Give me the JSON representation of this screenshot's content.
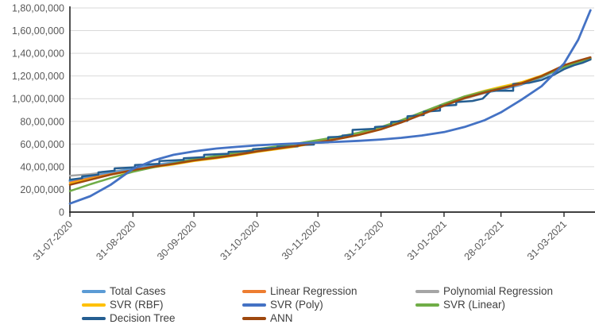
{
  "chart_data": {
    "type": "line",
    "title": "",
    "xlabel": "",
    "ylabel": "",
    "grid": "horizontal",
    "legend_position": "bottom",
    "legend_columns": 3,
    "y_axis": {
      "unit_note": "values in Indian digit grouping (lakhs/crores)",
      "ylim": [
        0,
        18000000
      ],
      "tick_values_lakh": [
        0,
        20,
        40,
        60,
        80,
        100,
        120,
        140,
        160,
        180
      ],
      "tick_labels": [
        "0",
        "20,00,000",
        "40,00,000",
        "60,00,000",
        "80,00,000",
        "1,00,00,000",
        "1,20,00,000",
        "1,40,00,000",
        "1,60,00,000",
        "1,80,00,000"
      ]
    },
    "x_axis": {
      "tick_labels": [
        "31-07-2020",
        "31-08-2020",
        "30-09-2020",
        "31-10-2020",
        "30-11-2020",
        "31-12-2020",
        "31-01-2021",
        "28-02-2021",
        "31-03-2021"
      ],
      "tick_days": [
        0,
        31,
        61,
        92,
        122,
        153,
        184,
        212,
        243
      ],
      "end_day": 256
    },
    "sample_days": [
      0,
      10,
      20,
      31,
      41,
      51,
      61,
      72,
      82,
      92,
      102,
      112,
      122,
      132,
      142,
      153,
      163,
      173,
      184,
      194,
      204,
      212,
      222,
      232,
      243,
      250,
      256
    ],
    "series": [
      {
        "name": "Polynomial Regression",
        "color": "#A5A5A5",
        "width": 2.5,
        "values_lakh": [
          32,
          33.5,
          35.5,
          38.5,
          41.5,
          44,
          46.5,
          49,
          51.5,
          54,
          56.5,
          58.5,
          62,
          65,
          68.5,
          73.5,
          79,
          86,
          93.5,
          100,
          105,
          108.5,
          113,
          119.5,
          128.5,
          132.5,
          135
        ]
      },
      {
        "name": "Total Cases",
        "color": "#5B9BD5",
        "width": 3.2,
        "values_lakh": [
          27.5,
          31,
          34.5,
          38,
          41,
          43.5,
          46.5,
          49,
          51.5,
          54.5,
          56.5,
          59,
          62.5,
          65.5,
          69,
          74,
          80,
          87,
          94.5,
          101,
          105.5,
          108,
          112.5,
          119,
          128,
          132,
          135.5
        ]
      },
      {
        "name": "Linear Regression",
        "color": "#ED7D31",
        "width": 2.5,
        "values_lakh": [
          26,
          30,
          33.5,
          37,
          40,
          42.5,
          46,
          48.5,
          51,
          54,
          56.5,
          58.5,
          62,
          65,
          68.5,
          73.5,
          79.5,
          86.5,
          94,
          100.5,
          105.5,
          109,
          113,
          119.5,
          129,
          133,
          135.5
        ]
      },
      {
        "name": "SVR (RBF)",
        "color": "#FFC000",
        "width": 2.5,
        "values_lakh": [
          25,
          29,
          33,
          36.5,
          39.5,
          42,
          45,
          47.5,
          50,
          53,
          55.5,
          58,
          61.5,
          64.5,
          68,
          73,
          79.5,
          86.5,
          95,
          102,
          107,
          110.5,
          114.5,
          120.5,
          129,
          132.5,
          134.5
        ]
      },
      {
        "name": "SVR (Linear)",
        "color": "#70AD47",
        "width": 2.5,
        "values_lakh": [
          18.5,
          24.5,
          30,
          35.5,
          39.5,
          43,
          46.5,
          49.5,
          52.5,
          55.5,
          58,
          60.5,
          63.5,
          66.5,
          70,
          75,
          81,
          88,
          95.5,
          102,
          106.5,
          109.5,
          113.5,
          119.5,
          128,
          132,
          135
        ]
      },
      {
        "name": "Decision Tree",
        "color": "#255E91",
        "width": 2.5,
        "points_day_lakh": [
          [
            0,
            28.5
          ],
          [
            6,
            30
          ],
          [
            6,
            31.5
          ],
          [
            14,
            33
          ],
          [
            14,
            35
          ],
          [
            22,
            36.5
          ],
          [
            22,
            38.5
          ],
          [
            32,
            39.5
          ],
          [
            32,
            41.5
          ],
          [
            44,
            42.5
          ],
          [
            44,
            45
          ],
          [
            56,
            46
          ],
          [
            56,
            47.5
          ],
          [
            66,
            48.5
          ],
          [
            66,
            50.5
          ],
          [
            78,
            51.5
          ],
          [
            78,
            53
          ],
          [
            90,
            54
          ],
          [
            90,
            55.5
          ],
          [
            102,
            56.5
          ],
          [
            102,
            57.5
          ],
          [
            112,
            58
          ],
          [
            112,
            59
          ],
          [
            120,
            59.5
          ],
          [
            120,
            61
          ],
          [
            127,
            61.5
          ],
          [
            127,
            66
          ],
          [
            134,
            66.5
          ],
          [
            134,
            67.5
          ],
          [
            139,
            68
          ],
          [
            139,
            72.5
          ],
          [
            150,
            73.5
          ],
          [
            150,
            75
          ],
          [
            158,
            76
          ],
          [
            158,
            79.5
          ],
          [
            166,
            80.5
          ],
          [
            166,
            84.5
          ],
          [
            174,
            85.5
          ],
          [
            174,
            88.5
          ],
          [
            182,
            89.5
          ],
          [
            182,
            93.5
          ],
          [
            190,
            94.5
          ],
          [
            190,
            97
          ],
          [
            198,
            98
          ],
          [
            203,
            100
          ],
          [
            207,
            107
          ],
          [
            218,
            107
          ],
          [
            218,
            113
          ],
          [
            226,
            114
          ],
          [
            232,
            116.5
          ],
          [
            238,
            121
          ],
          [
            243,
            126
          ],
          [
            248,
            129.5
          ],
          [
            252,
            131.5
          ],
          [
            256,
            134.5
          ]
        ]
      },
      {
        "name": "ANN",
        "color": "#9E480E",
        "width": 2.5,
        "values_lakh": [
          24,
          28.5,
          33,
          37,
          40,
          42.5,
          45.5,
          48,
          50.5,
          53.5,
          56,
          58.5,
          61.5,
          64.5,
          68,
          73,
          79,
          86,
          94,
          100.5,
          105.5,
          109,
          113.5,
          120,
          129.5,
          133.5,
          136.5
        ]
      },
      {
        "name": "SVR (Poly)",
        "color": "#4472C4",
        "width": 2.8,
        "values_lakh": [
          7.5,
          14,
          24,
          38,
          45.5,
          50.5,
          53.5,
          56,
          57.5,
          58.8,
          59.8,
          60.6,
          61.3,
          62,
          62.8,
          64,
          65.5,
          67.5,
          70.5,
          75,
          81,
          88,
          99,
          111,
          131,
          152,
          178
        ]
      }
    ],
    "legend_order": [
      "Total Cases",
      "Linear Regression",
      "Polynomial Regression",
      "SVR (RBF)",
      "SVR (Poly)",
      "SVR (Linear)",
      "Decision Tree",
      "ANN"
    ]
  },
  "style": {
    "axis_color": "#262626",
    "gridline_color": "#D9D9D9",
    "tick_label_color": "#595959",
    "legend_text_color": "#404040",
    "background": "#FFFFFF"
  }
}
